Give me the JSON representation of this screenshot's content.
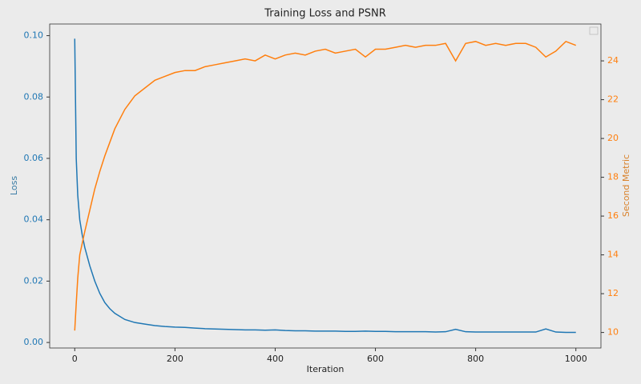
{
  "chart_data": {
    "type": "line",
    "title": "Training Loss and PSNR",
    "x_label": "Iteration",
    "y_label": "Loss",
    "y2_label": "Second Metric",
    "x": [
      0,
      3,
      6,
      10,
      15,
      20,
      30,
      40,
      50,
      60,
      70,
      80,
      90,
      100,
      120,
      140,
      160,
      180,
      200,
      220,
      240,
      260,
      280,
      300,
      320,
      340,
      360,
      380,
      400,
      420,
      440,
      460,
      480,
      500,
      520,
      540,
      560,
      580,
      600,
      620,
      640,
      660,
      680,
      700,
      720,
      740,
      760,
      780,
      800,
      820,
      840,
      860,
      880,
      900,
      920,
      940,
      960,
      980,
      1000
    ],
    "series": [
      {
        "name": "Loss",
        "color": "#1f77b4",
        "axis": "y",
        "values": [
          0.099,
          0.06,
          0.048,
          0.04,
          0.035,
          0.031,
          0.025,
          0.02,
          0.016,
          0.013,
          0.011,
          0.0095,
          0.0085,
          0.0075,
          0.0065,
          0.006,
          0.0055,
          0.0052,
          0.005,
          0.0049,
          0.0047,
          0.0045,
          0.0044,
          0.0043,
          0.0042,
          0.0041,
          0.0041,
          0.004,
          0.0041,
          0.0039,
          0.0038,
          0.0038,
          0.0037,
          0.0037,
          0.0037,
          0.0036,
          0.0036,
          0.0037,
          0.0036,
          0.0036,
          0.0035,
          0.0035,
          0.0035,
          0.0035,
          0.0034,
          0.0035,
          0.0043,
          0.0035,
          0.0034,
          0.0034,
          0.0034,
          0.0034,
          0.0034,
          0.0034,
          0.0034,
          0.0044,
          0.0034,
          0.0033,
          0.0033
        ]
      },
      {
        "name": "Second Metric",
        "color": "#ff7f0e",
        "axis": "y2",
        "values": [
          10.1,
          11.5,
          12.8,
          14.0,
          14.6,
          15.2,
          16.3,
          17.4,
          18.3,
          19.1,
          19.8,
          20.5,
          21.0,
          21.5,
          22.2,
          22.6,
          23.0,
          23.2,
          23.4,
          23.5,
          23.5,
          23.7,
          23.8,
          23.9,
          24.0,
          24.1,
          24.0,
          24.3,
          24.1,
          24.3,
          24.4,
          24.3,
          24.5,
          24.6,
          24.4,
          24.5,
          24.6,
          24.2,
          24.6,
          24.6,
          24.7,
          24.8,
          24.7,
          24.8,
          24.8,
          24.9,
          24.0,
          24.9,
          25.0,
          24.8,
          24.9,
          24.8,
          24.9,
          24.9,
          24.7,
          24.2,
          24.5,
          25.0,
          24.8
        ]
      }
    ],
    "xlim": [
      -50,
      1050
    ],
    "xticks": [
      0,
      200,
      400,
      600,
      800,
      1000
    ],
    "ylim": [
      -0.0018,
      0.1038
    ],
    "yticks": [
      {
        "value": 0,
        "label": "0.00"
      },
      {
        "value": 0.02,
        "label": "0.02"
      },
      {
        "value": 0.04,
        "label": "0.04"
      },
      {
        "value": 0.06,
        "label": "0.06"
      },
      {
        "value": 0.08,
        "label": "0.08"
      },
      {
        "value": 0.1,
        "label": "0.10"
      }
    ],
    "y2lim": [
      9.2,
      25.9
    ],
    "y2ticks": [
      10,
      12,
      14,
      16,
      18,
      20,
      22,
      24
    ],
    "legend": "upper right",
    "grid": false
  }
}
